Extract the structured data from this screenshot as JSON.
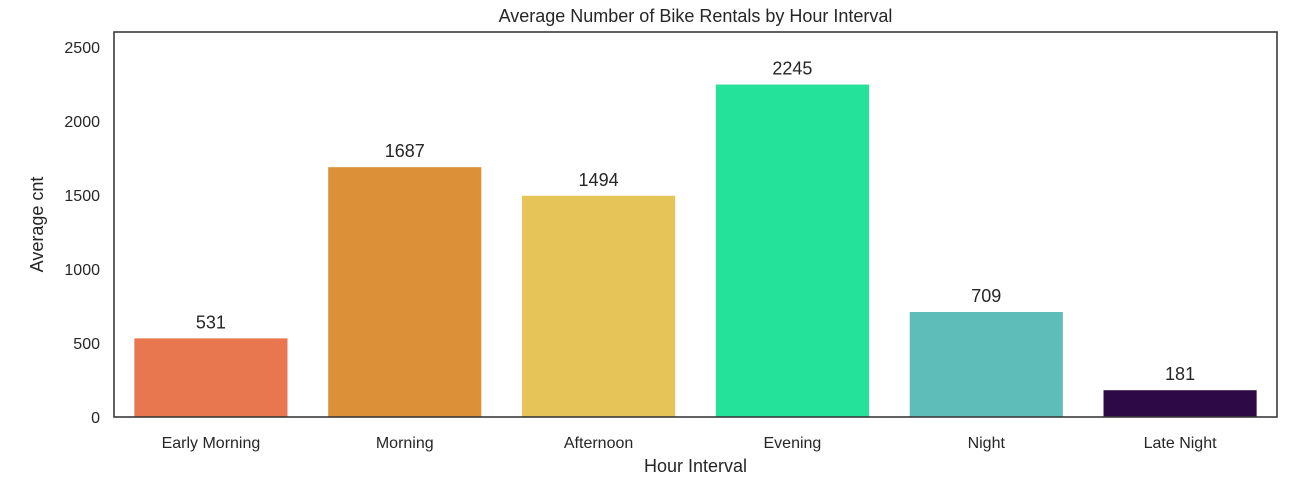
{
  "chart_data": {
    "type": "bar",
    "title": "Average Number of Bike Rentals by Hour Interval",
    "xlabel": "Hour Interval",
    "ylabel": "Average cnt",
    "categories": [
      "Early Morning",
      "Morning",
      "Afternoon",
      "Evening",
      "Night",
      "Late Night"
    ],
    "values": [
      531,
      1687,
      1494,
      2245,
      709,
      181
    ],
    "data_labels": [
      "531",
      "1687",
      "1494",
      "2245",
      "709",
      "181"
    ],
    "colors": [
      "#e8764f",
      "#dc9038",
      "#e7c457",
      "#25e29b",
      "#5ebdb8",
      "#2d0a45"
    ],
    "ylim": [
      0,
      2600
    ],
    "yticks": [
      0,
      500,
      1000,
      1500,
      2000,
      2500
    ],
    "ytick_labels": [
      "0",
      "500",
      "1000",
      "1500",
      "2000",
      "2500"
    ],
    "grid": false,
    "legend": "none"
  }
}
